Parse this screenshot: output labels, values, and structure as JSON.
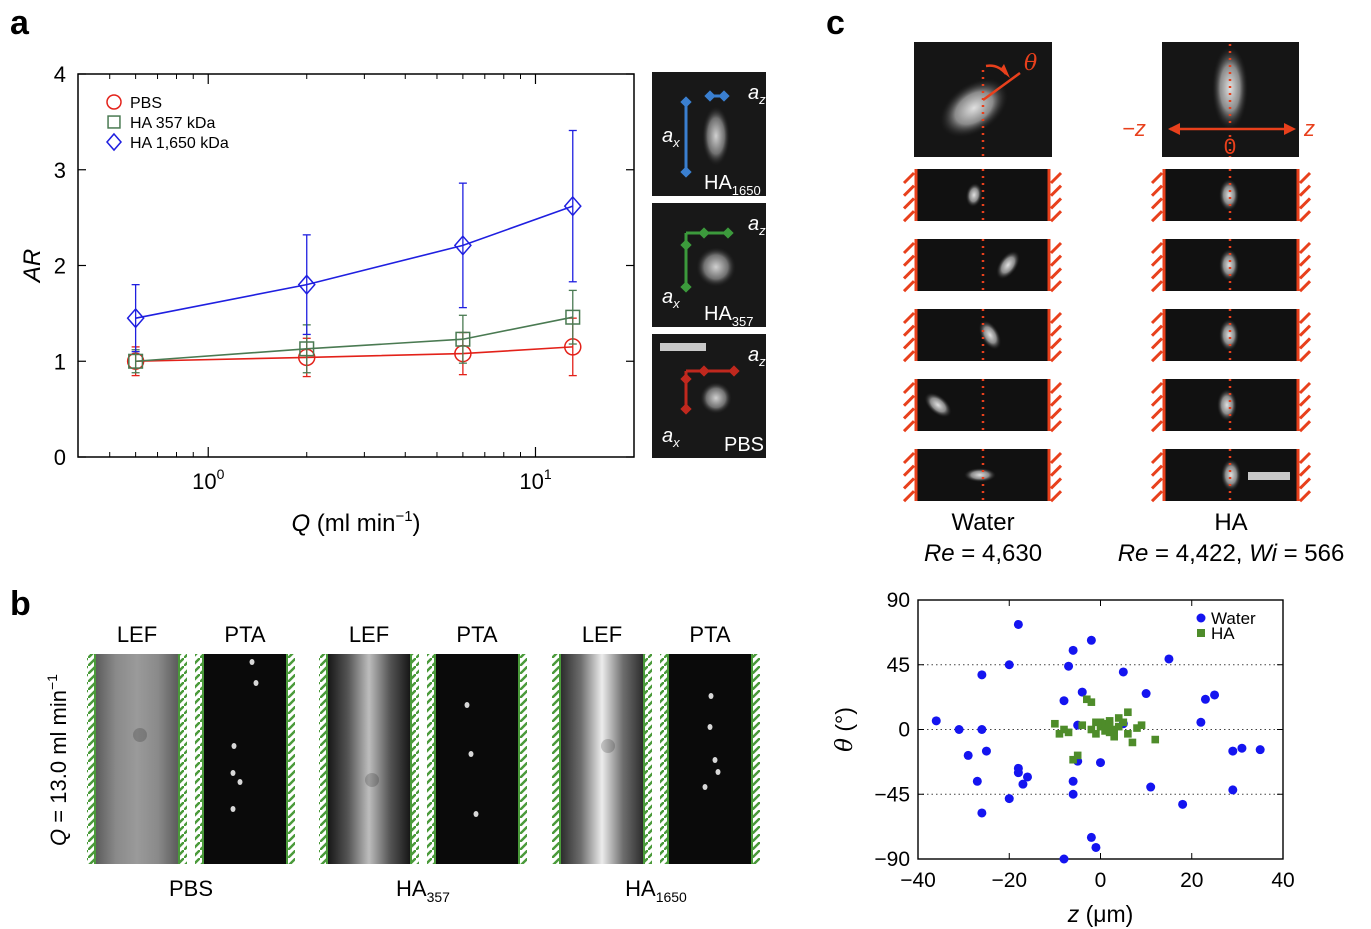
{
  "panels": {
    "a": "a",
    "b": "b",
    "c": "c"
  },
  "chart_data": [
    {
      "id": "panel-a",
      "type": "line",
      "xscale": "log",
      "xlim": [
        0.4,
        20
      ],
      "ylim": [
        0,
        4
      ],
      "xticks": [
        1,
        10
      ],
      "xtick_labels": [
        {
          "base": "10",
          "exp": "0"
        },
        {
          "base": "10",
          "exp": "1"
        }
      ],
      "yticks": [
        0,
        1,
        2,
        3,
        4
      ],
      "ytick_labels": [
        "0",
        "1",
        "2",
        "3",
        "4"
      ],
      "xlabel": {
        "var": "Q",
        "unit": " (ml min",
        "exp": "−1",
        "close": ")"
      },
      "ylabel": "AR",
      "legend_position": "top-left",
      "x": [
        0.6,
        2,
        6,
        13
      ],
      "series": [
        {
          "name": "PBS",
          "marker": "circle",
          "color": "#e32119",
          "values": [
            1.0,
            1.04,
            1.08,
            1.15
          ],
          "err": [
            0.15,
            0.2,
            0.22,
            0.3
          ]
        },
        {
          "name": "HA 357 kDa",
          "marker": "square",
          "color": "#4a7a52",
          "values": [
            1.0,
            1.13,
            1.23,
            1.46
          ],
          "err": [
            0.12,
            0.25,
            0.25,
            0.28
          ]
        },
        {
          "name": "HA 1,650 kDa",
          "marker": "diamond",
          "color": "#1f1fe0",
          "values": [
            1.45,
            1.8,
            2.21,
            2.62
          ],
          "err": [
            0.35,
            0.52,
            0.65,
            0.79
          ]
        }
      ]
    },
    {
      "id": "panel-c-scatter",
      "type": "scatter",
      "xlim": [
        -40,
        40
      ],
      "ylim": [
        -90,
        90
      ],
      "xticks": [
        -40,
        -20,
        0,
        20,
        40
      ],
      "xtick_labels": [
        "−40",
        "−20",
        "0",
        "20",
        "40"
      ],
      "yticks": [
        -90,
        -45,
        0,
        45,
        90
      ],
      "ytick_labels": [
        "−90",
        "−45",
        "0",
        "45",
        "90"
      ],
      "xlabel": {
        "var": "z",
        "unit": " (μm)"
      },
      "ylabel": {
        "var": "θ",
        "unit": " (°)"
      },
      "grid_y": [
        -45,
        0,
        45
      ],
      "legend_position": "top-right",
      "series": [
        {
          "name": "Water",
          "marker": "circle",
          "color": "#1414f0",
          "points": [
            [
              -36,
              6
            ],
            [
              -31,
              0
            ],
            [
              -29,
              -18
            ],
            [
              -26,
              38
            ],
            [
              -26,
              0
            ],
            [
              -25,
              -15
            ],
            [
              -27,
              -36
            ],
            [
              -26,
              -58
            ],
            [
              -20,
              45
            ],
            [
              -18,
              73
            ],
            [
              -18,
              -30
            ],
            [
              -18,
              -27
            ],
            [
              -20,
              -48
            ],
            [
              -17,
              -38
            ],
            [
              -16,
              -33
            ],
            [
              -8,
              -90
            ],
            [
              -8,
              20
            ],
            [
              -7,
              44
            ],
            [
              -6,
              55
            ],
            [
              -6,
              -36
            ],
            [
              -6,
              -45
            ],
            [
              -5,
              3
            ],
            [
              -5,
              -22
            ],
            [
              -4,
              26
            ],
            [
              -2,
              62
            ],
            [
              -2,
              -75
            ],
            [
              -1,
              -82
            ],
            [
              0,
              -23
            ],
            [
              5,
              40
            ],
            [
              5,
              4
            ],
            [
              10,
              25
            ],
            [
              11,
              -40
            ],
            [
              15,
              49
            ],
            [
              18,
              -52
            ],
            [
              22,
              5
            ],
            [
              23,
              21
            ],
            [
              25,
              24
            ],
            [
              29,
              -42
            ],
            [
              29,
              -15
            ],
            [
              31,
              -13
            ],
            [
              35,
              -14
            ]
          ]
        },
        {
          "name": "HA",
          "marker": "square",
          "color": "#4e8c2a",
          "points": [
            [
              -10,
              4
            ],
            [
              -9,
              -3
            ],
            [
              -8,
              0
            ],
            [
              -7,
              -2
            ],
            [
              -6,
              -21
            ],
            [
              -5,
              -18
            ],
            [
              -4,
              3
            ],
            [
              -3,
              21
            ],
            [
              -2,
              19
            ],
            [
              -2,
              0
            ],
            [
              -1,
              -3
            ],
            [
              0,
              2
            ],
            [
              0,
              5
            ],
            [
              1,
              4
            ],
            [
              2,
              -2
            ],
            [
              2,
              3
            ],
            [
              3,
              0
            ],
            [
              3,
              -5
            ],
            [
              4,
              2
            ],
            [
              4,
              8
            ],
            [
              5,
              5
            ],
            [
              6,
              12
            ],
            [
              6,
              -3
            ],
            [
              7,
              -9
            ],
            [
              8,
              1
            ],
            [
              9,
              3
            ],
            [
              12,
              -7
            ],
            [
              1,
              -1
            ],
            [
              -1,
              5
            ],
            [
              2,
              6
            ]
          ]
        }
      ]
    }
  ],
  "panel_a_images": {
    "tiles": [
      {
        "tag": "HA",
        "sub": "1650",
        "ax": "a",
        "ax_sub": "x",
        "az": "a",
        "az_sub": "z",
        "color": "#3a7fd0"
      },
      {
        "tag": "HA",
        "sub": "357",
        "ax": "a",
        "ax_sub": "x",
        "az": "a",
        "az_sub": "z",
        "color": "#3c9a3c"
      },
      {
        "tag": "PBS",
        "sub": "",
        "ax": "a",
        "ax_sub": "x",
        "az": "a",
        "az_sub": "z",
        "color": "#c0281e"
      }
    ]
  },
  "panel_b": {
    "ylabel": {
      "var": "Q",
      "rest": " = 13.0 ml min",
      "exp": "−1"
    },
    "col_labels": [
      "LEF",
      "PTA",
      "LEF",
      "PTA",
      "LEF",
      "PTA"
    ],
    "group_labels": [
      {
        "main": "PBS",
        "sub": ""
      },
      {
        "main": "HA",
        "sub": "357"
      },
      {
        "main": "HA",
        "sub": "1650"
      }
    ]
  },
  "panel_c_images": {
    "theta_symbol": "θ",
    "z_neg": "−z",
    "z_pos": "z",
    "z_zero": "0",
    "left_caption": {
      "title": "Water",
      "var": "Re",
      "value": " = 4,630"
    },
    "right_caption": {
      "title": "HA",
      "var": "Re",
      "value": " = 4,422,",
      "var2": "Wi",
      "value2": " = 566"
    }
  },
  "colors": {
    "accent_orange": "#e8401c",
    "wall_green": "#4a9a3a"
  }
}
